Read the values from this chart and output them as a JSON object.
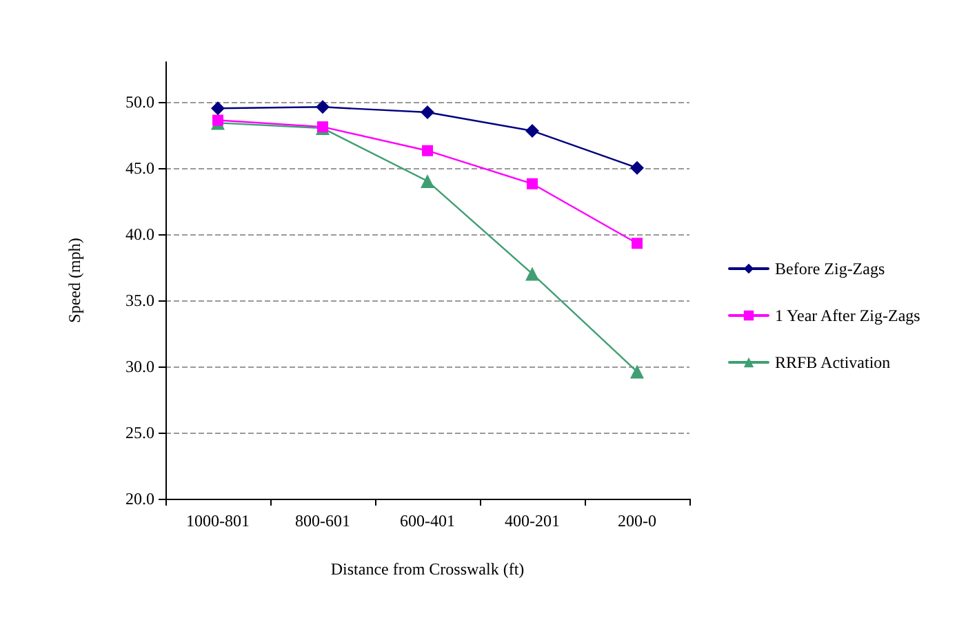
{
  "chart_data": {
    "type": "line",
    "xlabel": "Distance from Crosswalk (ft)",
    "ylabel": "Speed (mph)",
    "categories": [
      "1000-801",
      "800-601",
      "600-401",
      "400-201",
      "200-0"
    ],
    "series": [
      {
        "name": "Before Zig-Zags",
        "color": "#000080",
        "marker": "diamond",
        "values": [
          49.5,
          49.6,
          49.2,
          47.8,
          45.0
        ]
      },
      {
        "name": "1 Year After Zig-Zags",
        "color": "#ff00ff",
        "marker": "square",
        "values": [
          48.6,
          48.1,
          46.3,
          43.8,
          39.3
        ]
      },
      {
        "name": "RRFB Activation",
        "color": "#3f9f73",
        "marker": "triangle",
        "values": [
          48.4,
          48.0,
          44.0,
          37.0,
          29.6
        ]
      }
    ],
    "ylim": [
      20,
      53
    ],
    "yticks": [
      {
        "value": 20,
        "label": "20.0"
      },
      {
        "value": 25,
        "label": "25.0"
      },
      {
        "value": 30,
        "label": "30.0"
      },
      {
        "value": 35,
        "label": "35.0"
      },
      {
        "value": 40,
        "label": "40.0"
      },
      {
        "value": 45,
        "label": "45.0"
      },
      {
        "value": 50,
        "label": "50.0"
      }
    ],
    "grid": "y",
    "legend": "right",
    "line_style": "solid"
  }
}
